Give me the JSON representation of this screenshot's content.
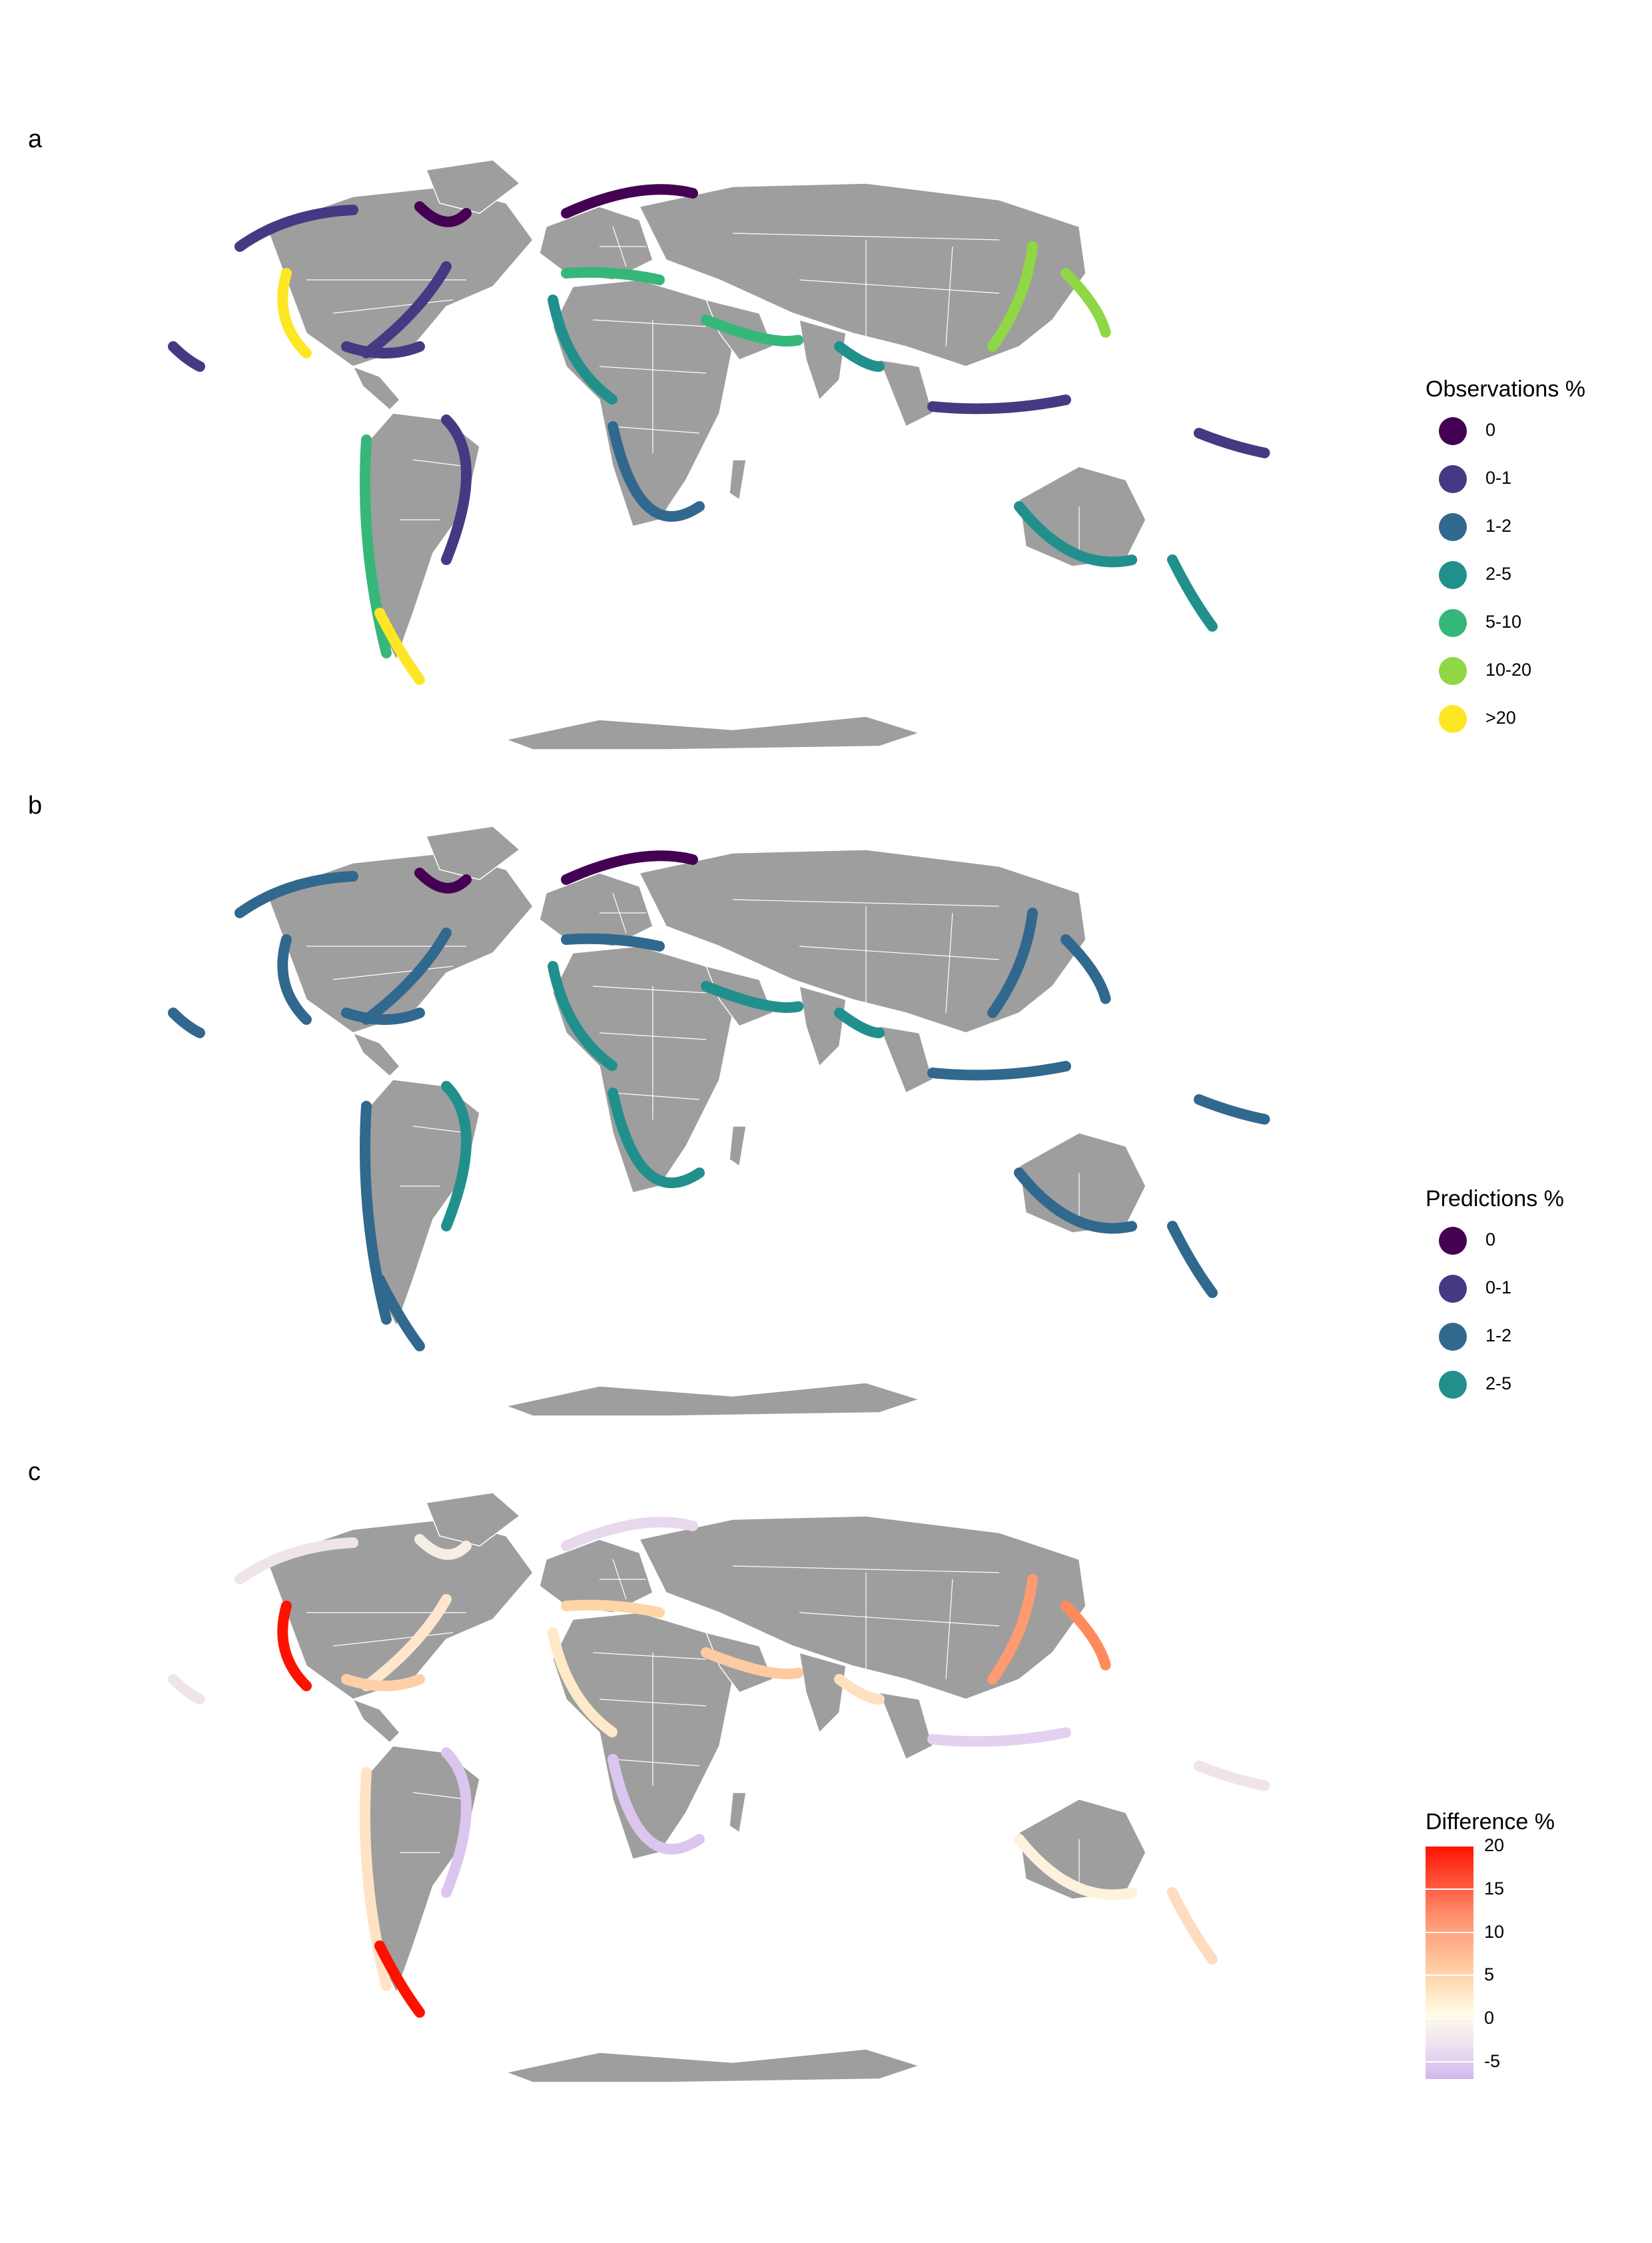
{
  "panels": [
    {
      "letter": "a",
      "legend_title": "Observations %",
      "legend": [
        {
          "label": "0",
          "color": "#440154"
        },
        {
          "label": "0-1",
          "color": "#443a83"
        },
        {
          "label": "1-2",
          "color": "#31688e"
        },
        {
          "label": "2-5",
          "color": "#21908d"
        },
        {
          "label": "5-10",
          "color": "#35b779"
        },
        {
          "label": "10-20",
          "color": "#8fd744"
        },
        {
          "label": ">20",
          "color": "#fde725"
        }
      ]
    },
    {
      "letter": "b",
      "legend_title": "Predictions %",
      "legend": [
        {
          "label": "0",
          "color": "#440154"
        },
        {
          "label": "0-1",
          "color": "#443a83"
        },
        {
          "label": "1-2",
          "color": "#31688e"
        },
        {
          "label": "2-5",
          "color": "#21908d"
        }
      ]
    },
    {
      "letter": "c",
      "legend_title": "Difference %",
      "gradient_ticks": [
        "20",
        "15",
        "10",
        "5",
        "0",
        "-5"
      ],
      "gradient_range": [
        -7,
        20
      ],
      "gradient_colors": [
        "#ff1100",
        "#fffbe6",
        "#d2b7ec"
      ]
    }
  ],
  "land_color": "#9e9e9e",
  "border_color": "#ffffff"
}
